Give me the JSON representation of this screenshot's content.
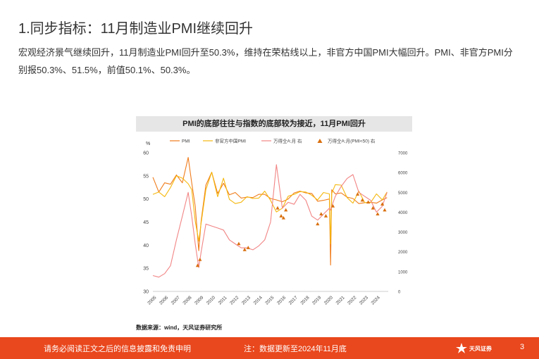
{
  "page": {
    "title": "1.同步指标：11月制造业PMI继续回升",
    "body": "宏观经济景气继续回升，11月制造业PMI回升至50.3%，维持在荣枯线以上，非官方中国PMI大幅回升。PMI、非官方PMI分别报50.3%、51.5%，前值50.1%、50.3%。",
    "source": "数据来源：wind，天风证券研究所",
    "footer_disclaimer": "请务必阅读正文之后的信息披露和免责申明",
    "footer_note": "注：数据更新至2024年11月底",
    "logo_text": "天风证券",
    "page_number": "3"
  },
  "colors": {
    "pmi": "#f07c1b",
    "unofficial": "#f5b80f",
    "wind": "#f28484",
    "marker": "#d9700f",
    "footer": "#e9471d"
  },
  "chart_data": {
    "type": "line",
    "title": "PMI的底部往往与指数的底部较为接近，11月PMI回升",
    "left_unit": "%",
    "x": [
      2005,
      2005.5,
      2006,
      2006.5,
      2007,
      2007.5,
      2008,
      2008.3,
      2008.6,
      2008.9,
      2009.1,
      2009.5,
      2010,
      2010.5,
      2011,
      2011.5,
      2012,
      2012.5,
      2013,
      2013.5,
      2014,
      2014.5,
      2015,
      2015.5,
      2016,
      2016.5,
      2017,
      2017.5,
      2018,
      2018.5,
      2019,
      2019.5,
      2020,
      2020.1,
      2020.2,
      2020.5,
      2021,
      2021.5,
      2022,
      2022.5,
      2023,
      2023.5,
      2024,
      2024.5,
      2024.9
    ],
    "x_ticks": [
      "2005",
      "2006",
      "2007",
      "2008",
      "2009",
      "2010",
      "2011",
      "2012",
      "2013",
      "2014",
      "2015",
      "2016",
      "2017",
      "2018",
      "2019",
      "2020",
      "2021",
      "2022",
      "2023",
      "2024"
    ],
    "y_left": {
      "min": 30,
      "max": 60,
      "ticks": [
        30,
        35,
        40,
        45,
        50,
        55,
        60
      ]
    },
    "y_right": {
      "min": 0,
      "max": 7000,
      "ticks": [
        0,
        1000,
        2000,
        3000,
        4000,
        5000,
        6000,
        7000
      ]
    },
    "series": [
      {
        "name": "PMI",
        "axis": "left",
        "values": [
          54.7,
          51.5,
          53.5,
          53.2,
          55.2,
          53.5,
          59.0,
          53.5,
          48.4,
          38.8,
          45.3,
          53.0,
          55.8,
          51.2,
          53.4,
          50.9,
          51.4,
          50.2,
          50.4,
          50.3,
          51.0,
          51.0,
          50.1,
          49.8,
          49.4,
          50.0,
          51.3,
          51.7,
          51.3,
          51.2,
          49.5,
          49.7,
          50.0,
          35.7,
          52.0,
          51.1,
          51.3,
          50.4,
          50.1,
          49.0,
          49.2,
          49.3,
          49.1,
          49.8,
          50.3
        ]
      },
      {
        "name": "非官方中国PMI",
        "axis": "left",
        "values": [
          51.0,
          51.5,
          50.5,
          52.5,
          55.0,
          54.5,
          53.3,
          52.0,
          45.2,
          40.9,
          44.8,
          52.0,
          55.8,
          50.5,
          54.5,
          49.9,
          49.0,
          49.3,
          50.5,
          50.1,
          50.2,
          51.7,
          49.7,
          47.2,
          48.0,
          50.6,
          51.0,
          51.6,
          51.5,
          50.8,
          49.8,
          51.4,
          51.1,
          40.3,
          51.2,
          53.1,
          53.0,
          50.3,
          49.1,
          51.7,
          49.2,
          49.2,
          51.1,
          49.8,
          51.5
        ]
      },
      {
        "name": "万得全A:月 右",
        "axis": "right",
        "values": [
          800,
          720,
          900,
          1300,
          2600,
          3800,
          5000,
          3800,
          2400,
          1200,
          2000,
          3400,
          3300,
          3200,
          3100,
          2600,
          2400,
          2200,
          2200,
          2100,
          2300,
          2600,
          3500,
          6400,
          4200,
          4500,
          4400,
          4900,
          4600,
          3800,
          3600,
          3900,
          4200,
          4100,
          4300,
          4800,
          5300,
          5700,
          5900,
          5000,
          4800,
          4600,
          4000,
          4300,
          5000
        ]
      },
      {
        "name": "万得全A:月(PMI<50) 右",
        "axis": "right",
        "type": "marker",
        "x": [
          2008.8,
          2009.0,
          2012.3,
          2012.8,
          2013.1,
          2015.6,
          2015.9,
          2016.1,
          2016.3,
          2019.0,
          2019.3,
          2019.7,
          2020.3,
          2022.4,
          2022.8,
          2023.3,
          2023.7,
          2024.1,
          2024.5,
          2024.7
        ],
        "values": [
          1300,
          1600,
          2400,
          2100,
          2200,
          4200,
          3800,
          3700,
          4100,
          3400,
          3900,
          3800,
          4300,
          4900,
          4600,
          4500,
          4200,
          3900,
          4400,
          4100
        ]
      }
    ]
  }
}
